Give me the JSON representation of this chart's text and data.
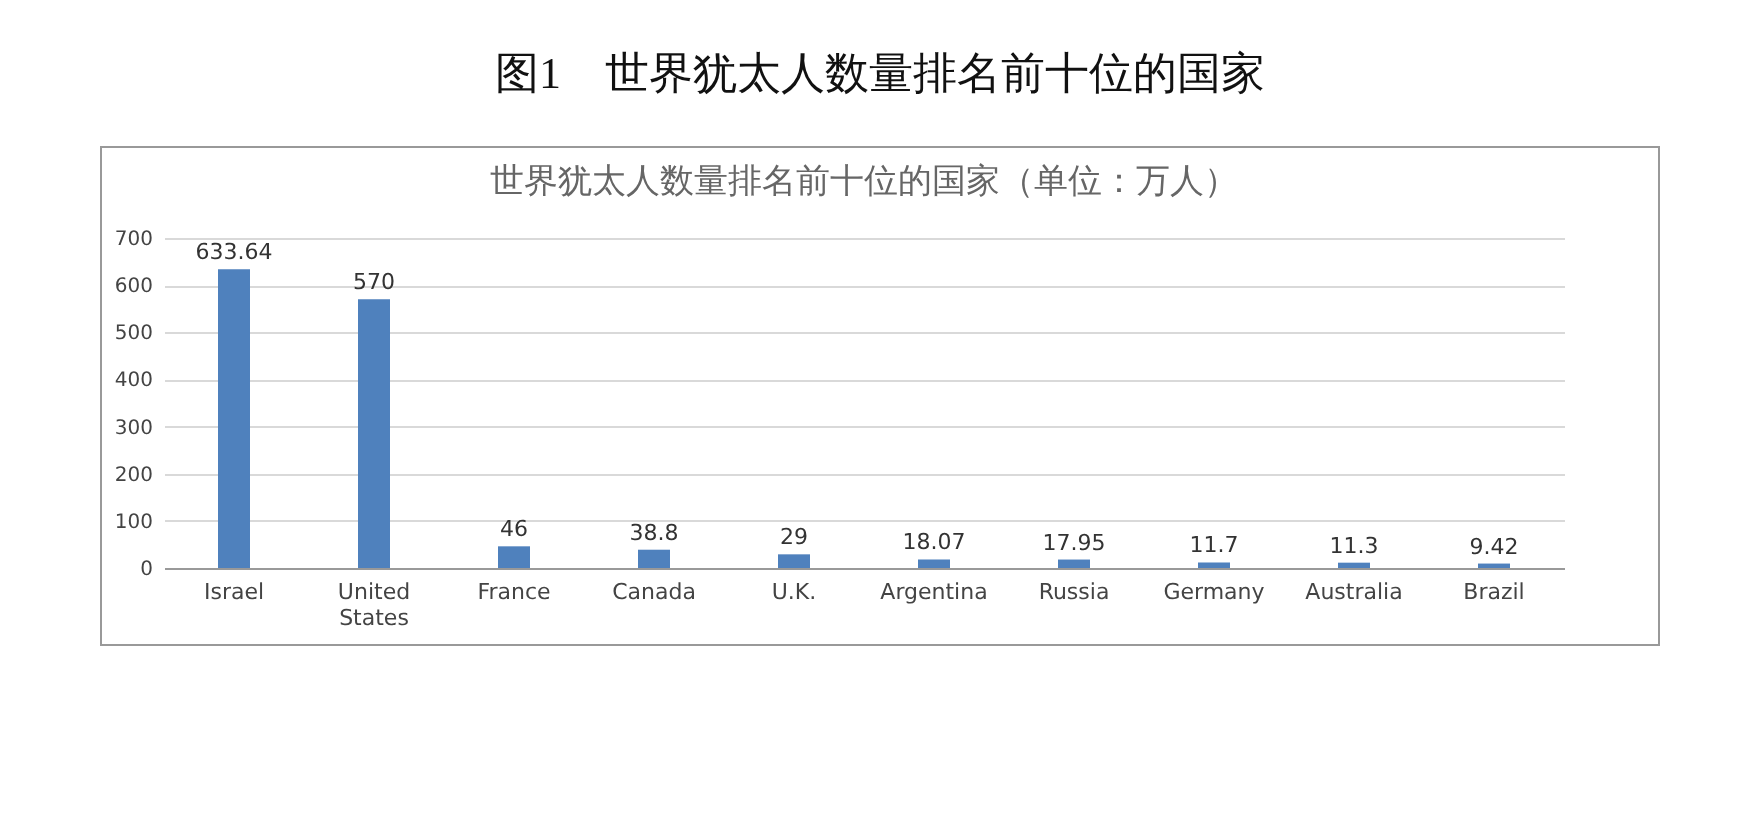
{
  "chart_data": {
    "type": "bar",
    "title": "图1　世界犹太人数量排名前十位的国家",
    "subtitle": "世界犹太人数量排名前十位的国家（单位：万人）",
    "categories": [
      "Israel",
      "United States",
      "France",
      "Canada",
      "U.K.",
      "Argentina",
      "Russia",
      "Germany",
      "Australia",
      "Brazil"
    ],
    "values": [
      633.64,
      570,
      46,
      38.8,
      29,
      18.07,
      17.95,
      11.7,
      11.3,
      9.42
    ],
    "color": "#4f81bd",
    "ylim": [
      0,
      700
    ],
    "yticks": [
      0,
      100,
      200,
      300,
      400,
      500,
      600,
      700
    ],
    "grid": "y",
    "data_labels": true
  }
}
